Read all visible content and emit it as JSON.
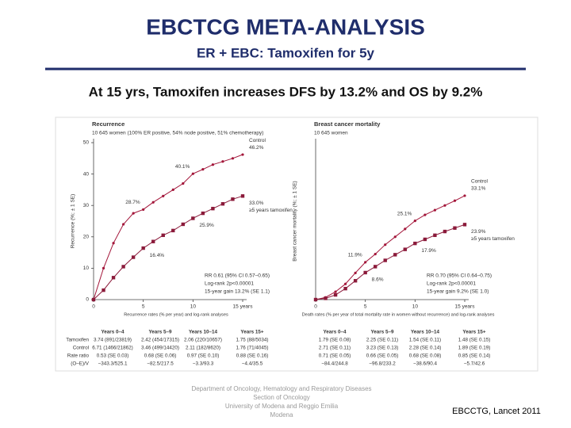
{
  "header": {
    "title": "EBCTCG META-ANALYSIS",
    "subtitle": "ER + EBC:  Tamoxifen for 5y"
  },
  "headline": "At 15 yrs, Tamoxifen increases DFS by 13.2% and OS by 9.2%",
  "chart_data": [
    {
      "type": "line",
      "title": "Recurrence",
      "subtitle": "10 645 women (100% ER positive, 54% node positive, 51% chemotherapy)",
      "y_label": "Recurrence (%; ± 1 SE)",
      "x_label": "Recurrence rates (% per year) and log-rank analyses",
      "x": [
        0,
        1,
        2,
        3,
        4,
        5,
        6,
        7,
        8,
        9,
        10,
        11,
        12,
        13,
        14,
        15
      ],
      "xlim": [
        0,
        15
      ],
      "xticks": [
        0,
        5,
        10,
        {
          "value": 15,
          "label": "15 years"
        }
      ],
      "ylim": [
        0,
        50
      ],
      "yticks": [
        0,
        10,
        20,
        30,
        40,
        50
      ],
      "series": [
        {
          "name": "Control",
          "color": "#a3163a",
          "marker": "circle",
          "values": [
            0,
            10,
            18,
            24,
            27.5,
            28.7,
            31,
            33,
            35,
            37,
            40.1,
            41.5,
            43,
            44,
            45,
            46.2
          ],
          "value_labels": [
            null,
            null,
            null,
            null,
            null,
            "28.7%",
            null,
            null,
            null,
            null,
            "40.1%",
            null,
            null,
            null,
            null,
            "46.2%"
          ]
        },
        {
          "name": "≥5 years tamoxifen",
          "color": "#8b1a3a",
          "marker": "square",
          "values": [
            0,
            3,
            7,
            10.5,
            13.5,
            16.4,
            18.5,
            20.5,
            22,
            24,
            25.9,
            27.5,
            29,
            30.5,
            32,
            33.0
          ],
          "value_labels": [
            null,
            null,
            null,
            null,
            null,
            "16.4%",
            null,
            null,
            null,
            null,
            "25.9%",
            null,
            null,
            null,
            null,
            "33.0%"
          ]
        }
      ],
      "stats": [
        "RR 0.61 (95% CI 0.57–0.65)",
        "Log-rank 2p<0.00001",
        "15-year gain 13.2% (SE 1.1)"
      ],
      "table": {
        "columns": [
          "Years 0–4",
          "Years 5–9",
          "Years 10–14",
          "Years 15+"
        ],
        "row_labels": [
          "Tamoxifen",
          "Control",
          "Rate ratio",
          "(O–E)/V"
        ],
        "rows": [
          [
            "3.74 (891/23819)",
            "2.42 (454/17315)",
            "2.06 (220/10657)",
            "1.75 (88/5034)"
          ],
          [
            "6.71 (1466/21862)",
            "3.46 (499/14420)",
            "2.11 (182/8620)",
            "1.76 (71/4045)"
          ],
          [
            "0.53 (SE 0.03)",
            "0.68 (SE 0.06)",
            "0.97 (SE 0.10)",
            "0.88 (SE 0.16)"
          ],
          [
            "−343.3/525.1",
            "−82.5/217.5",
            "−3.3/93.3",
            "−4.4/35.5"
          ]
        ]
      }
    },
    {
      "type": "line",
      "title": "Breast cancer mortality",
      "subtitle": "10 645 women",
      "y_label": "Breast cancer mortality (%; ± 1 SE)",
      "x_label": "Death rates (% per year of total mortality rate in women without recurrence) and log-rank analyses",
      "x": [
        0,
        1,
        2,
        3,
        4,
        5,
        6,
        7,
        8,
        9,
        10,
        11,
        12,
        13,
        14,
        15
      ],
      "xlim": [
        0,
        15
      ],
      "xticks": [
        0,
        5,
        10,
        {
          "value": 15,
          "label": "15 years"
        }
      ],
      "ylim": [
        0,
        50
      ],
      "series": [
        {
          "name": "Control",
          "color": "#a3163a",
          "marker": "circle",
          "values": [
            0,
            0.7,
            2.5,
            5,
            8.5,
            11.9,
            14.5,
            17.5,
            20,
            22.5,
            25.1,
            27,
            28.5,
            30,
            31.5,
            33.1
          ],
          "value_labels": [
            null,
            null,
            null,
            null,
            null,
            "11.9%",
            null,
            null,
            null,
            null,
            "25.1%",
            null,
            null,
            null,
            null,
            "33.1%"
          ]
        },
        {
          "name": "≥5 years tamoxifen",
          "color": "#8b1a3a",
          "marker": "square",
          "values": [
            0,
            0.4,
            1.5,
            3.5,
            6,
            8.6,
            10.5,
            12.5,
            14.3,
            16,
            17.9,
            19.2,
            20.5,
            21.7,
            22.8,
            23.9
          ],
          "value_labels": [
            null,
            null,
            null,
            null,
            null,
            "8.6%",
            null,
            null,
            null,
            null,
            "17.9%",
            null,
            null,
            null,
            null,
            "23.9%"
          ]
        }
      ],
      "stats": [
        "RR 0.70 (95% CI 0.64–0.75)",
        "Log-rank 2p<0.00001",
        "15-year gain 9.2% (SE 1.0)"
      ],
      "table": {
        "columns": [
          "Years 0–4",
          "Years 5–9",
          "Years 10–14",
          "Years 15+"
        ],
        "rows": [
          [
            "1.79 (SE 0.08)",
            "2.25 (SE 0.11)",
            "1.54 (SE 0.11)",
            "1.48 (SE 0.15)"
          ],
          [
            "2.71 (SE 0.11)",
            "3.23 (SE 0.13)",
            "2.28 (SE 0.14)",
            "1.89 (SE 0.19)"
          ],
          [
            "0.71 (SE 0.05)",
            "0.66 (SE 0.05)",
            "0.68 (SE 0.08)",
            "0.85 (SE 0.14)"
          ],
          [
            "−84.4/244.8",
            "−96.8/233.2",
            "−38.6/90.4",
            "−5.7/42.6"
          ]
        ]
      }
    }
  ],
  "footer": {
    "affiliation": [
      "Department of Oncology, Hematology and Respiratory Diseases",
      "Section of Oncology",
      "University of Modena and Reggio Emilia",
      "Modena"
    ],
    "citation": "EBCCTG, Lancet 2011"
  }
}
